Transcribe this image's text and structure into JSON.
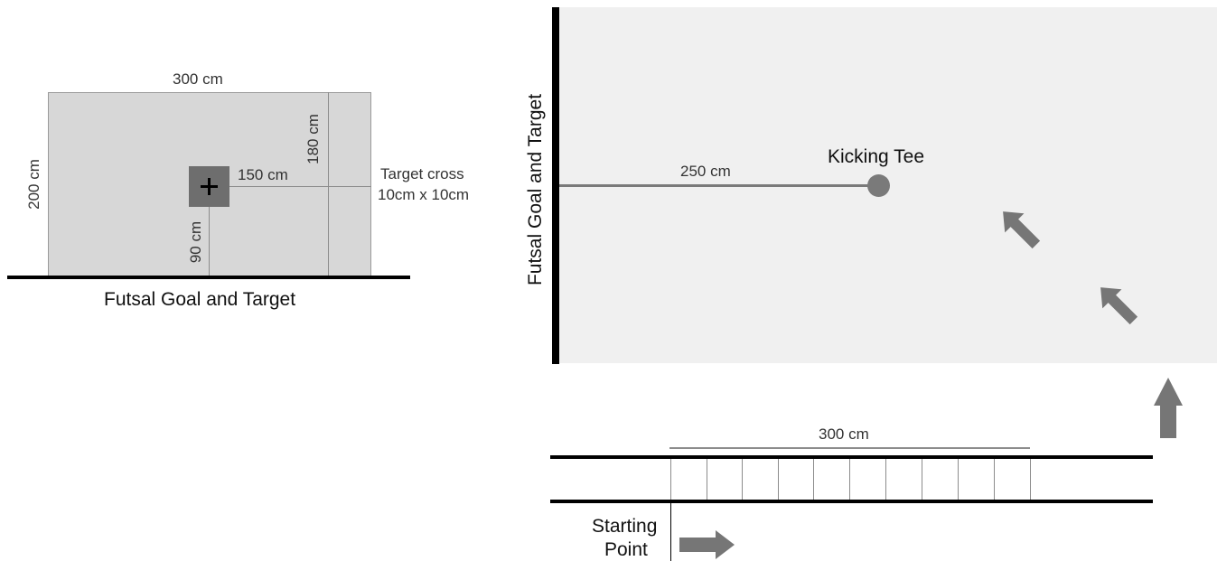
{
  "goal_diagram": {
    "width_label": "300 cm",
    "height_label": "200 cm",
    "target_height_label": "180 cm",
    "target_offset_label": "150 cm",
    "cross_height_label": "90 cm",
    "target_cross_line1": "Target cross",
    "target_cross_line2": "10cm x 10cm",
    "caption": "Futsal Goal and Target"
  },
  "field_diagram": {
    "goal_label": "Futsal Goal and Target",
    "tee_label": "Kicking Tee",
    "tee_distance_label": "250 cm",
    "runway_length_label": "300 cm",
    "start_line1": "Starting",
    "start_line2": "Point"
  },
  "colors": {
    "goal_fill": "#d7d7d7",
    "field_fill": "#f0f0f0",
    "arrow": "#767676",
    "line": "#000000"
  }
}
